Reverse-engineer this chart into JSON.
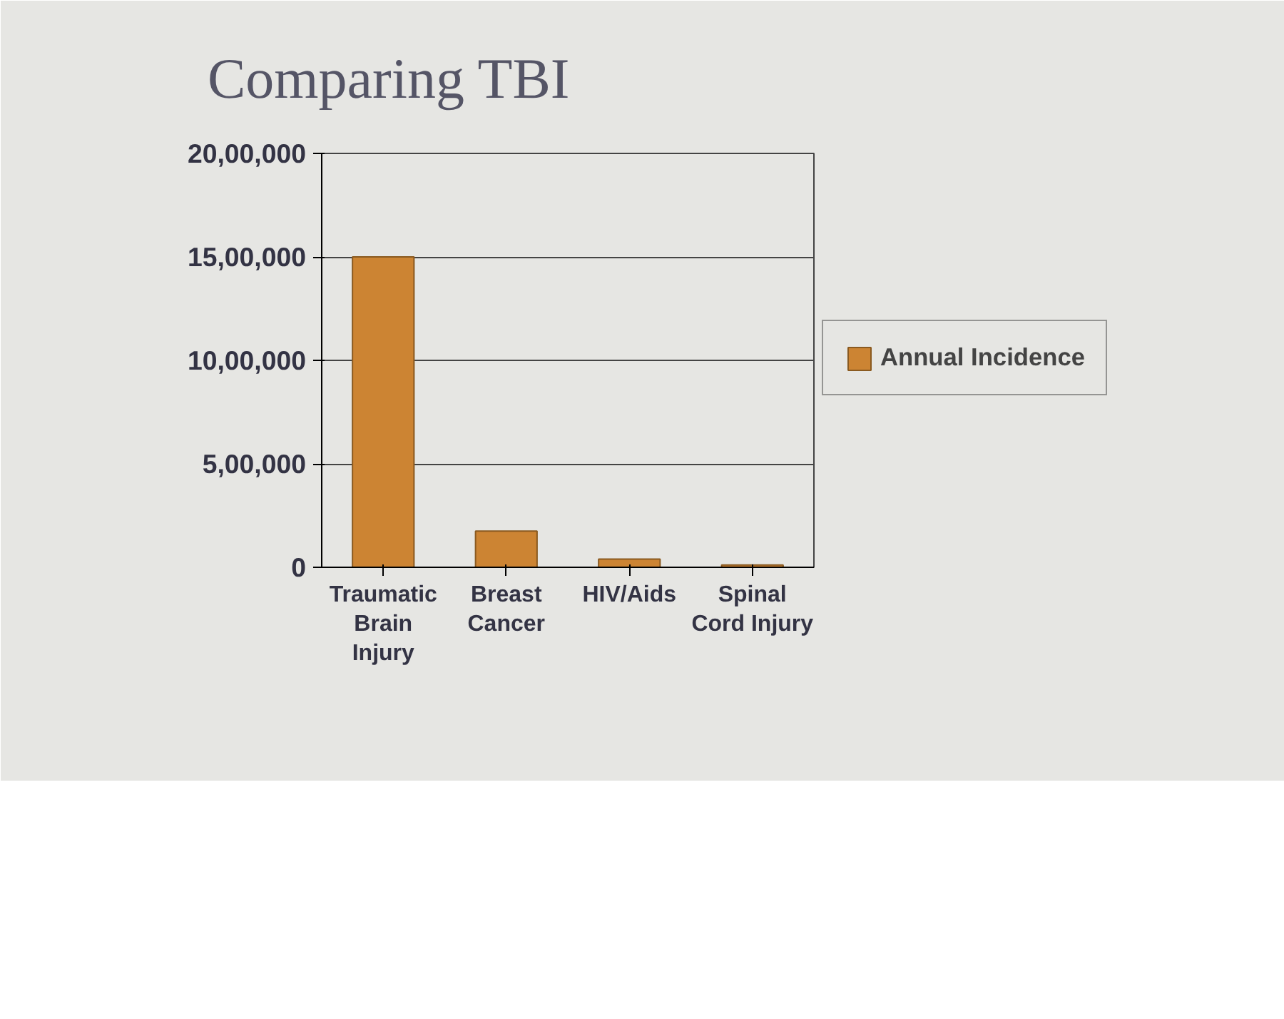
{
  "chart_data": {
    "type": "bar",
    "title": "Comparing TBI",
    "categories": [
      "Traumatic\nBrain\nInjury",
      "Breast\nCancer",
      "HIV/Aids",
      "Spinal\nCord Injury"
    ],
    "series": [
      {
        "name": "Annual Incidence",
        "color": "#cc8433",
        "values": [
          1500000,
          175000,
          40000,
          11000
        ]
      }
    ],
    "ylim": [
      0,
      2000000
    ],
    "yticks": [
      {
        "value": 0,
        "label": "0"
      },
      {
        "value": 500000,
        "label": "5,00,000"
      },
      {
        "value": 1000000,
        "label": "10,00,000"
      },
      {
        "value": 1500000,
        "label": "15,00,000"
      },
      {
        "value": 2000000,
        "label": "20,00,000"
      }
    ],
    "grid": "y",
    "legend": "right"
  }
}
